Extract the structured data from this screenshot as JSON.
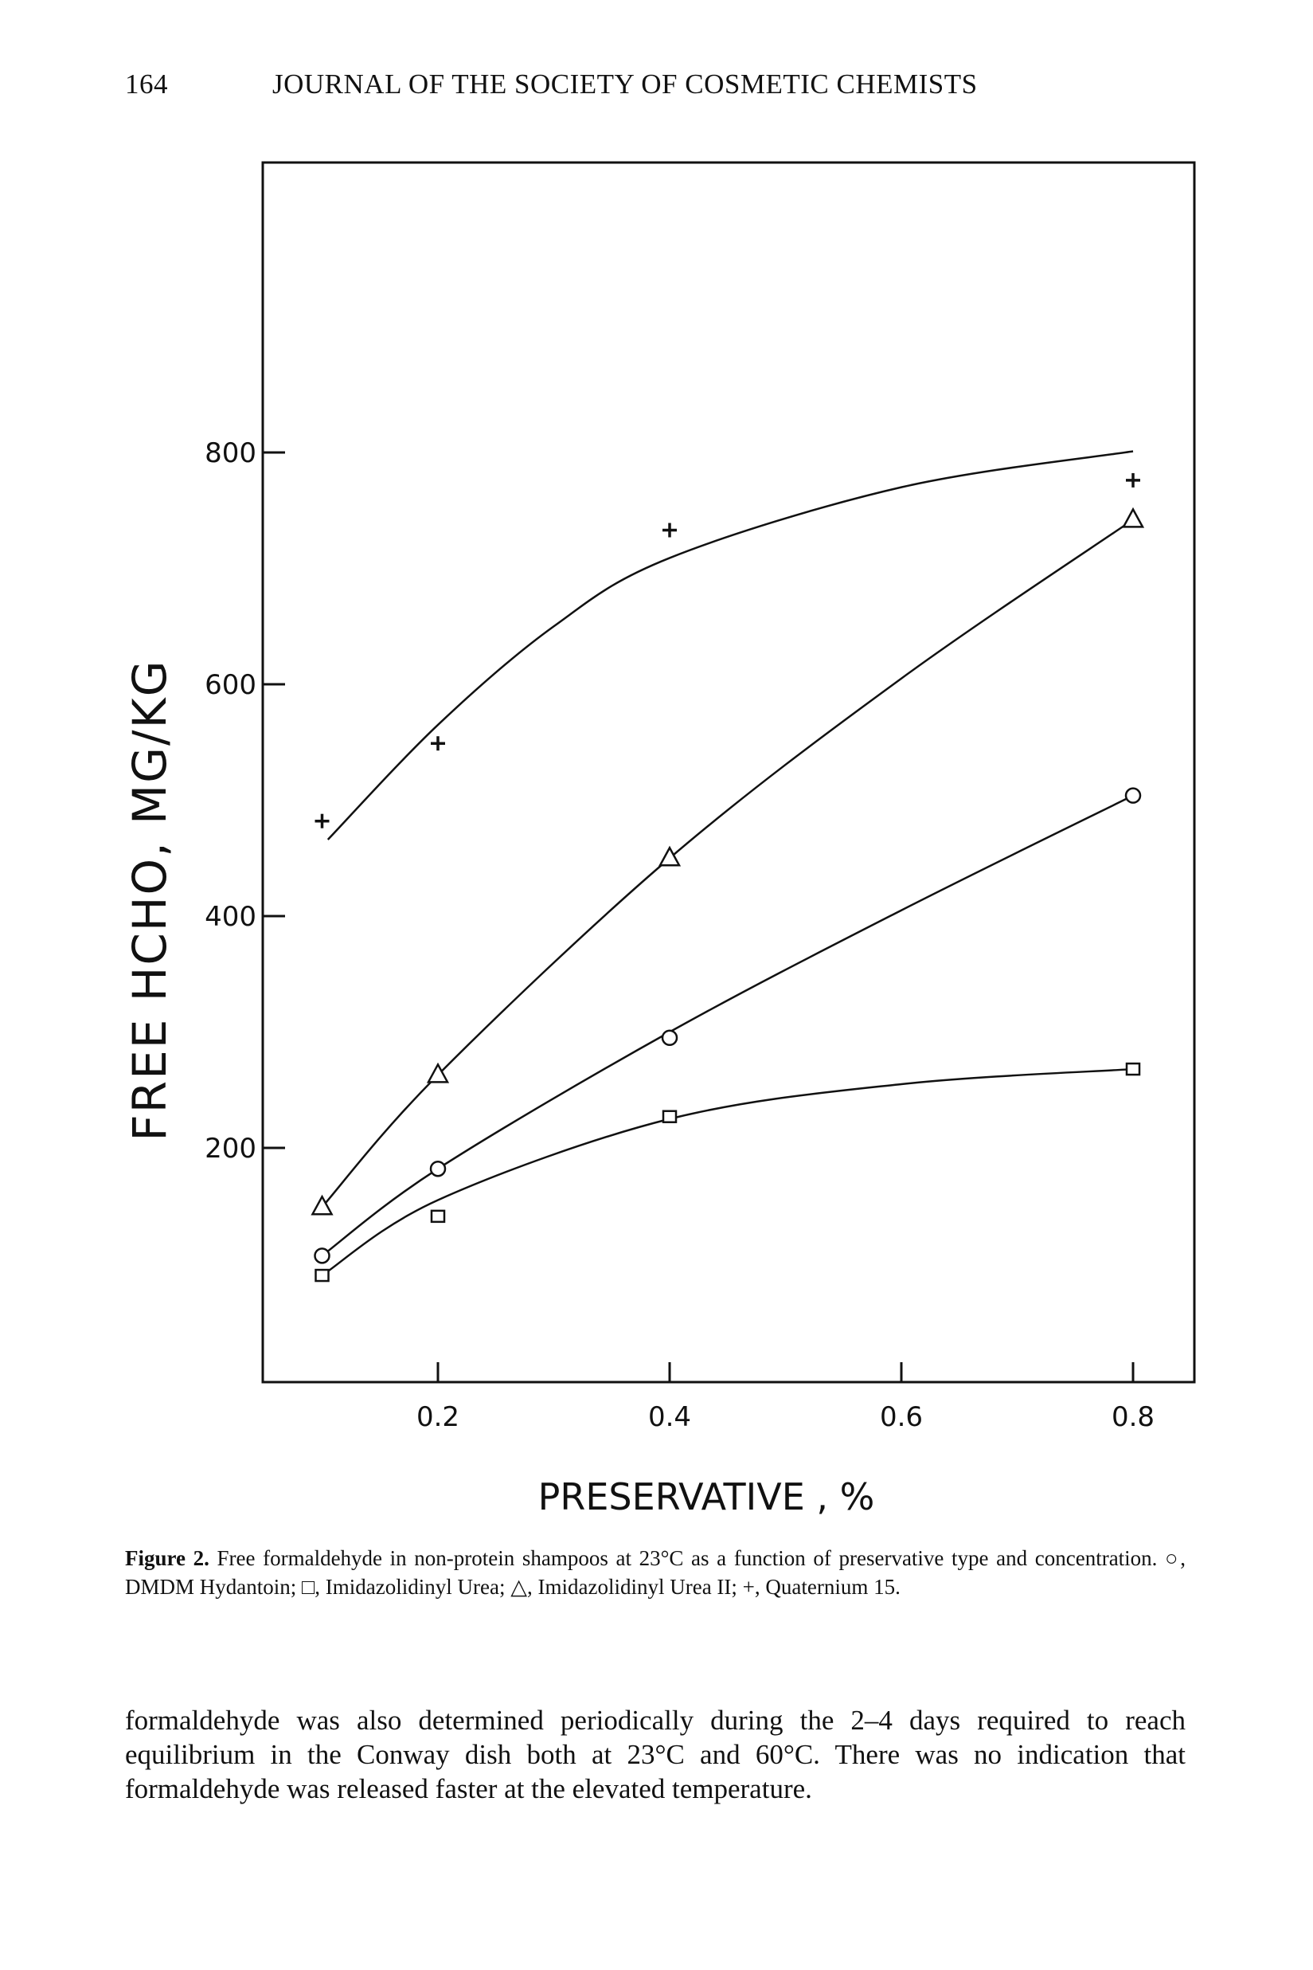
{
  "header": {
    "page_number": "164",
    "journal": "JOURNAL OF THE SOCIETY OF COSMETIC CHEMISTS"
  },
  "chart_data": {
    "type": "scatter",
    "title": "",
    "xlabel": "PRESERVATIVE , %",
    "ylabel": "FREE  HCHO, MG/KG",
    "xlim": [
      0.015,
      0.825
    ],
    "ylim": [
      0,
      1000
    ],
    "xticks": [
      {
        "value": 0.2,
        "label": "0.2"
      },
      {
        "value": 0.4,
        "label": "0.4"
      },
      {
        "value": 0.6,
        "label": "0.6"
      },
      {
        "value": 0.8,
        "label": "0.8"
      }
    ],
    "yticks": [
      {
        "value": 200,
        "label": "200"
      },
      {
        "value": 400,
        "label": "400"
      },
      {
        "value": 600,
        "label": "600"
      },
      {
        "value": 800,
        "label": "800"
      }
    ],
    "grid": false,
    "series": [
      {
        "name": "Quaternium 15",
        "marker": "plus",
        "x": [
          0.1,
          0.2,
          0.4,
          0.8
        ],
        "y": [
          482,
          549,
          733,
          776
        ],
        "fit": {
          "x": [
            0.105,
            0.2,
            0.3,
            0.4,
            0.6,
            0.8
          ],
          "y": [
            466,
            565,
            650,
            709,
            770,
            801
          ]
        }
      },
      {
        "name": "Imidazolidinyl Urea II",
        "marker": "triangle",
        "x": [
          0.1,
          0.2,
          0.4,
          0.8
        ],
        "y": [
          149,
          263,
          450,
          742
        ],
        "fit": {
          "x": [
            0.1,
            0.2,
            0.4,
            0.6,
            0.8
          ],
          "y": [
            149,
            263,
            450,
            605,
            742
          ]
        }
      },
      {
        "name": "DMDM Hydantoin",
        "marker": "circle",
        "x": [
          0.1,
          0.2,
          0.4,
          0.8
        ],
        "y": [
          107,
          182,
          295,
          504
        ],
        "fit": {
          "x": [
            0.1,
            0.2,
            0.4,
            0.6,
            0.8
          ],
          "y": [
            107,
            182,
            300,
            405,
            504
          ]
        }
      },
      {
        "name": "Imidazolidinyl Urea",
        "marker": "square",
        "x": [
          0.1,
          0.2,
          0.4,
          0.8
        ],
        "y": [
          90,
          141,
          227,
          268
        ],
        "fit": {
          "x": [
            0.1,
            0.2,
            0.4,
            0.6,
            0.8
          ],
          "y": [
            90,
            155,
            225,
            255,
            268
          ]
        }
      }
    ]
  },
  "caption": {
    "label": "Figure 2.",
    "text": "Free formaldehyde in non-protein shampoos at 23°C as a function of preservative type and concentration. ○, DMDM Hydantoin; □, Imidazolidinyl Urea; △, Imidazolidinyl Urea II; +, Quaternium 15."
  },
  "body_text": "formaldehyde was also determined periodically during the 2–4 days required to reach equilibrium in the Conway dish both at 23°C and 60°C. There was no indication that formaldehyde was released faster at the elevated temperature."
}
